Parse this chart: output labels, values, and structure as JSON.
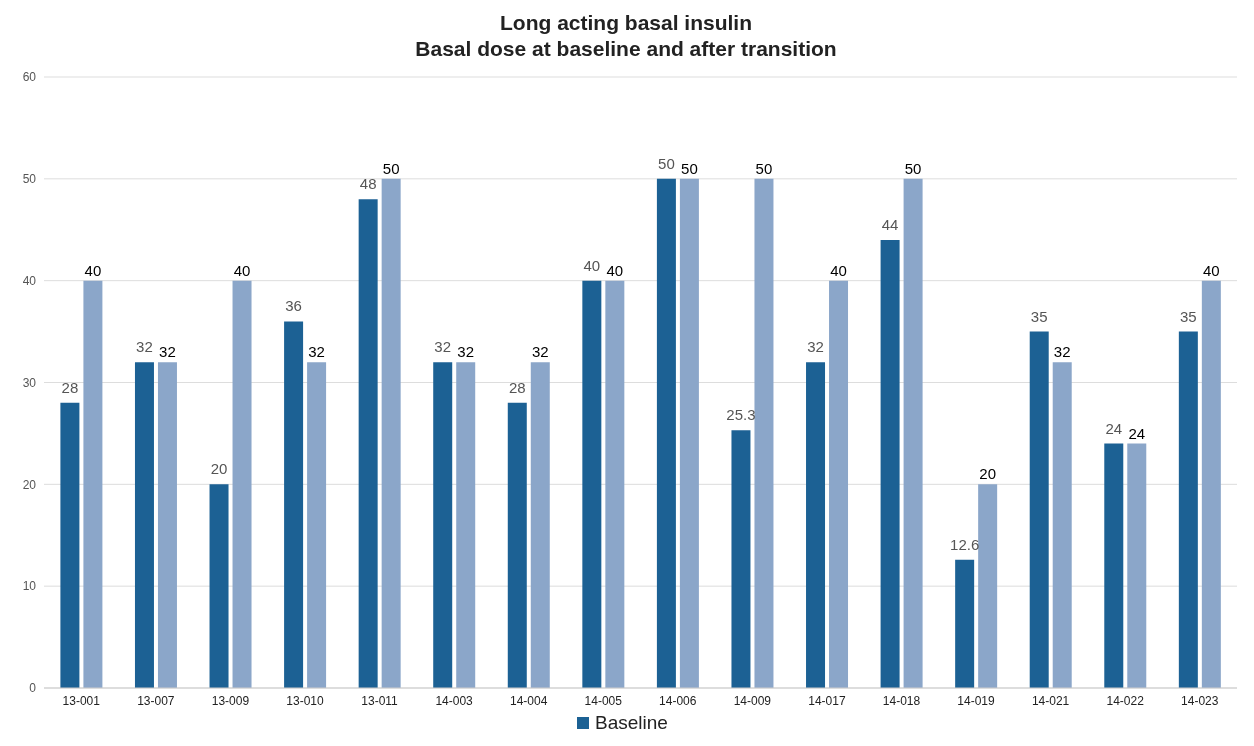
{
  "chart_data": {
    "type": "bar",
    "title": "Long acting basal insulin",
    "subtitle": "Basal dose at baseline and after transition",
    "categories": [
      "13-001",
      "13-007",
      "13-009",
      "13-010",
      "13-011",
      "14-003",
      "14-004",
      "14-005",
      "14-006",
      "14-009",
      "14-017",
      "14-018",
      "14-019",
      "14-021",
      "14-022",
      "14-023"
    ],
    "series": [
      {
        "name": "Baseline",
        "color": "#1c6194",
        "values": [
          28,
          32,
          20,
          36,
          48,
          32,
          28,
          40,
          50,
          25.3,
          32,
          44,
          12.6,
          35,
          24,
          35
        ]
      },
      {
        "color": "#8ba6c9",
        "values": [
          40,
          32,
          40,
          32,
          50,
          32,
          32,
          40,
          50,
          50,
          40,
          50,
          20,
          32,
          24,
          40
        ]
      }
    ],
    "ylim": [
      0,
      60
    ],
    "yticks": [
      0,
      10,
      20,
      30,
      40,
      50,
      60
    ],
    "grid": "y",
    "legend": "bottom",
    "data_labels": true
  }
}
